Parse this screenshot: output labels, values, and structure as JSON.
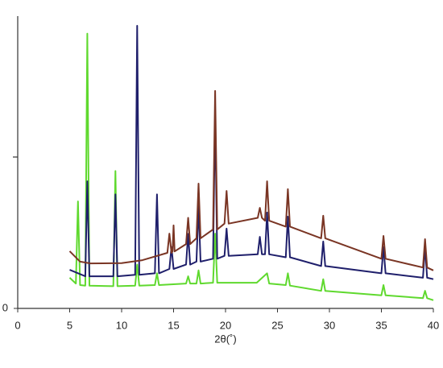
{
  "chart_data": {
    "type": "line",
    "x_label": "2θ(˚)",
    "xlim": [
      0,
      40
    ],
    "xticks": [
      0,
      5,
      10,
      15,
      20,
      25,
      30,
      35,
      40
    ],
    "ylim": [
      0,
      100
    ],
    "yticks": [
      0
    ],
    "series": [
      {
        "color": "#5fd92e",
        "x": [
          5,
          5.6,
          5.8,
          6.0,
          6.5,
          6.7,
          6.9,
          9.2,
          9.4,
          9.6,
          11.3,
          11.5,
          11.7,
          13.2,
          13.4,
          13.6,
          16.2,
          16.4,
          16.6,
          17.2,
          17.4,
          17.6,
          18.8,
          19,
          19.2,
          23,
          24,
          24.2,
          25.8,
          26,
          26.2,
          29.2,
          29.4,
          29.6,
          35,
          35.2,
          35.4,
          39,
          39.2,
          39.4,
          40
        ],
        "values": [
          10.5,
          8.5,
          36.6,
          8,
          7.8,
          94,
          7.8,
          7.6,
          47,
          7.6,
          7.8,
          15,
          7.8,
          8,
          12,
          8,
          8.5,
          11,
          8.5,
          8.5,
          13,
          8.5,
          8.8,
          25.6,
          8.8,
          8.8,
          12,
          8.5,
          8,
          12,
          7.8,
          6,
          10,
          6,
          4.5,
          8,
          4.5,
          3.5,
          6,
          3.5,
          2.8
        ]
      },
      {
        "color": "#1f1f6b",
        "x": [
          5,
          6.5,
          6.7,
          6.9,
          9.2,
          9.4,
          9.6,
          11.3,
          11.5,
          11.7,
          13.2,
          13.4,
          13.6,
          14.6,
          14.8,
          15,
          16.2,
          16.4,
          16.6,
          17.2,
          17.4,
          17.6,
          18.8,
          19,
          19.2,
          19.9,
          20.1,
          20.3,
          23.1,
          23.3,
          23.5,
          23.8,
          24,
          24.2,
          25.8,
          26,
          26.2,
          29.2,
          29.4,
          29.6,
          35,
          35.2,
          35.4,
          39,
          39.2,
          39.4,
          40
        ],
        "values": [
          13.2,
          11,
          43.5,
          11,
          11,
          39,
          11,
          11.5,
          96.7,
          11.5,
          12,
          39,
          12,
          13.5,
          21,
          13.5,
          15,
          25.5,
          15,
          16,
          35,
          16,
          17,
          67,
          17,
          18,
          27.3,
          18,
          18.5,
          24.5,
          18.5,
          18.5,
          32.8,
          18.5,
          17.5,
          31.4,
          17.5,
          14.5,
          22.9,
          14.5,
          12,
          21,
          12,
          10.5,
          21,
          10.5,
          10
        ]
      },
      {
        "color": "#7a3524",
        "x": [
          5,
          6,
          7,
          10,
          12,
          14.4,
          14.6,
          14.8,
          14.9,
          15,
          15.1,
          16.2,
          16.4,
          16.6,
          17.2,
          17.4,
          17.6,
          18.8,
          19,
          19.2,
          19.9,
          20.1,
          20.3,
          23.1,
          23.3,
          23.5,
          23.8,
          24,
          24.2,
          25.8,
          26,
          26.2,
          29.2,
          29.4,
          29.6,
          35,
          35.2,
          35.4,
          39,
          39.2,
          39.4,
          40
        ],
        "values": [
          19.6,
          16,
          15.4,
          15.5,
          16.5,
          19,
          25.6,
          19,
          19.5,
          28.4,
          19.5,
          22,
          31,
          22,
          24,
          42.7,
          24,
          27,
          74.4,
          27,
          29,
          40.2,
          29,
          31,
          34.4,
          31,
          30,
          43.5,
          30,
          28,
          40.8,
          28,
          24,
          31.7,
          24,
          17,
          24.8,
          17,
          14,
          23.7,
          14,
          13
        ]
      }
    ]
  }
}
